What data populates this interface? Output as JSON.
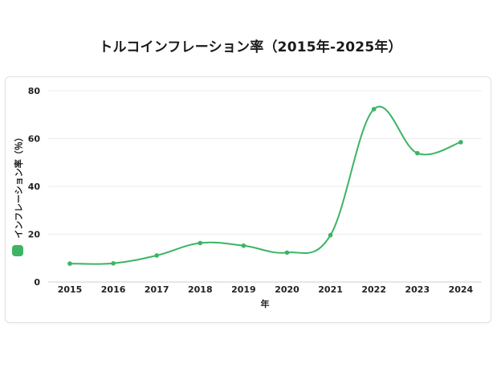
{
  "chart_data": {
    "type": "line",
    "title": "トルコインフレーション率（2015年-2025年）",
    "xlabel": "年",
    "ylabel": "インフレーション率（％）",
    "x": [
      "2015",
      "2016",
      "2017",
      "2018",
      "2019",
      "2020",
      "2021",
      "2022",
      "2023",
      "2024"
    ],
    "series": [
      {
        "values": [
          7.7,
          7.8,
          11.1,
          16.3,
          15.2,
          12.3,
          19.6,
          72.3,
          53.9,
          58.5
        ]
      }
    ],
    "ylim": [
      0,
      80
    ],
    "yticks": [
      0,
      20,
      40,
      60,
      80
    ],
    "grid": true,
    "line_color": "#3cb464"
  }
}
